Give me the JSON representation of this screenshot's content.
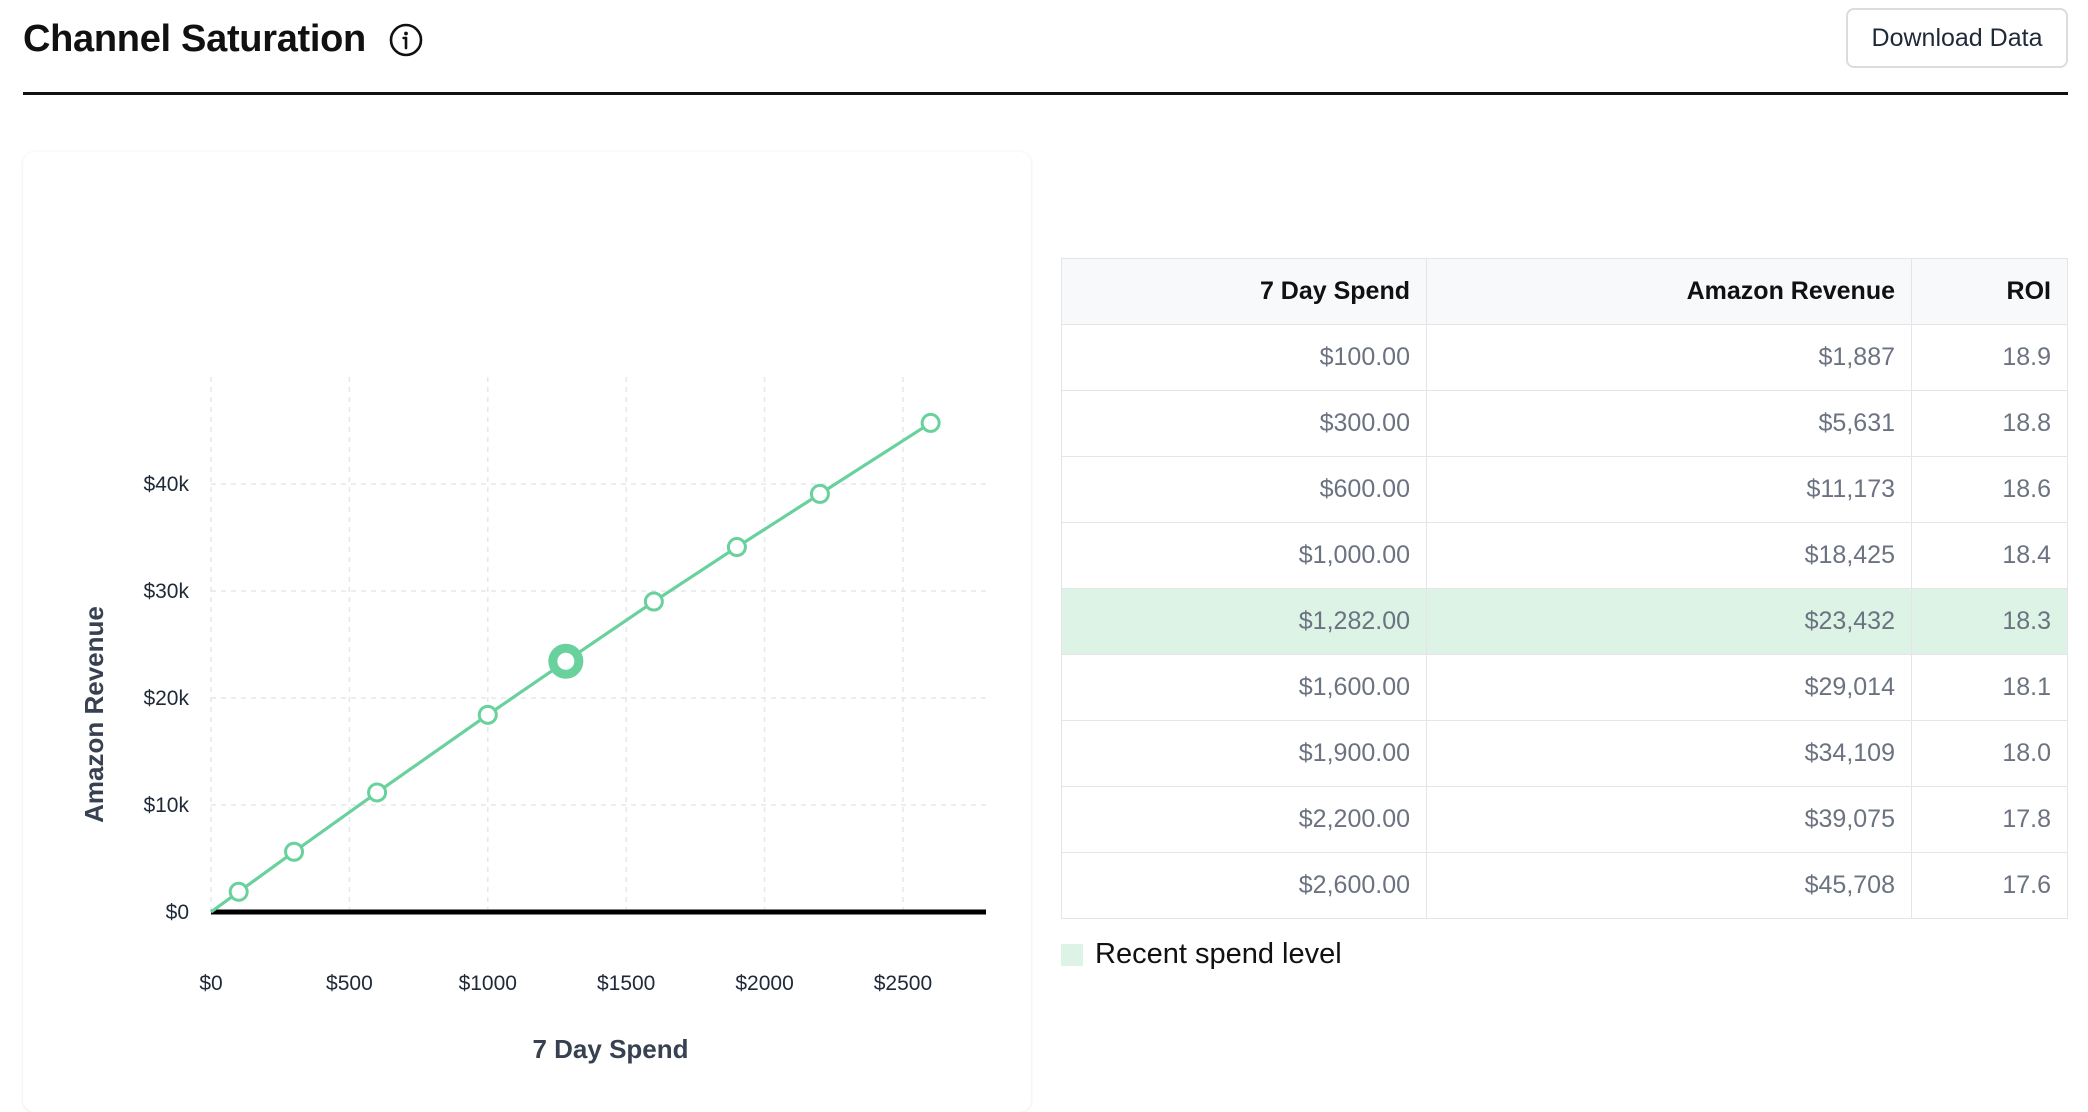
{
  "header": {
    "title": "Channel Saturation",
    "info_icon": "info-circle-icon",
    "download_label": "Download Data"
  },
  "colors": {
    "line": "#68d19c",
    "highlight_row": "#dcf3e6",
    "baseline": "#000000",
    "grid": "#e5e7eb"
  },
  "chart_data": {
    "type": "line",
    "xlabel": "7 Day Spend",
    "ylabel": "Amazon Revenue",
    "xlim": [
      0,
      2800
    ],
    "ylim": [
      0,
      50000
    ],
    "x_ticks": [
      0,
      500,
      1000,
      1500,
      2000,
      2500
    ],
    "x_tick_labels": [
      "$0",
      "$500",
      "$1000",
      "$1500",
      "$2000",
      "$2500"
    ],
    "y_ticks": [
      0,
      10000,
      20000,
      30000,
      40000
    ],
    "y_tick_labels": [
      "$0",
      "$10k",
      "$20k",
      "$30k",
      "$40k"
    ],
    "grid": true,
    "series": [
      {
        "x": [
          0,
          100,
          300,
          600,
          1000,
          1282,
          1600,
          1900,
          2200,
          2600
        ],
        "y": [
          0,
          1887,
          5631,
          11173,
          18425,
          23432,
          29014,
          34109,
          39075,
          45708
        ]
      }
    ],
    "highlight_point": {
      "x": 1282,
      "y": 23432
    }
  },
  "table": {
    "columns": [
      "7 Day Spend",
      "Amazon Revenue",
      "ROI"
    ],
    "rows": [
      [
        "$100.00",
        "$1,887",
        "18.9"
      ],
      [
        "$300.00",
        "$5,631",
        "18.8"
      ],
      [
        "$600.00",
        "$11,173",
        "18.6"
      ],
      [
        "$1,000.00",
        "$18,425",
        "18.4"
      ],
      [
        "$1,282.00",
        "$23,432",
        "18.3"
      ],
      [
        "$1,600.00",
        "$29,014",
        "18.1"
      ],
      [
        "$1,900.00",
        "$34,109",
        "18.0"
      ],
      [
        "$2,200.00",
        "$39,075",
        "17.8"
      ],
      [
        "$2,600.00",
        "$45,708",
        "17.6"
      ]
    ],
    "highlight_row_index": 4
  },
  "legend": {
    "label": "Recent spend level"
  }
}
